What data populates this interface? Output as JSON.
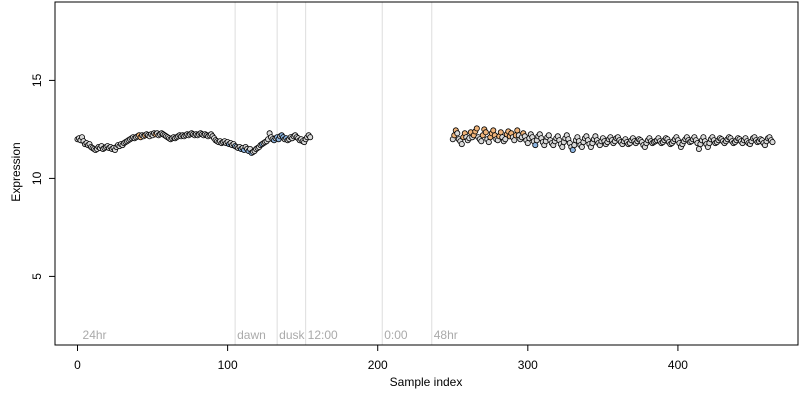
{
  "chart_data": {
    "type": "scatter",
    "xlabel": "Sample index",
    "ylabel": "Expression",
    "xlim": [
      -15,
      480
    ],
    "ylim": [
      1.5,
      19.0
    ],
    "x_ticks": [
      0,
      100,
      200,
      300,
      400
    ],
    "y_ticks": [
      5,
      10,
      15
    ],
    "grid": false,
    "marker": "circle",
    "phase_lines": [
      {
        "x": 105,
        "label": "dawn"
      },
      {
        "x": 133,
        "label": "dusk"
      },
      {
        "x": 152,
        "label": "12:00"
      },
      {
        "x": 203,
        "label": "0:00"
      },
      {
        "x": 236,
        "label": "48hr"
      }
    ],
    "annotations": [
      {
        "x": 2,
        "label": "24hr"
      }
    ],
    "annotation_y": 2.0,
    "colors": {
      "default": "#d9d9d9",
      "orange": "#f0b47a",
      "blue": "#8cb4e0",
      "outline": "#000000",
      "line": "#dddddd",
      "label": "#aaaaaa"
    },
    "series": [
      {
        "start": 0,
        "y": [
          12.0,
          12.05,
          11.95,
          12.1,
          11.9,
          11.75,
          11.8,
          11.7,
          11.75,
          11.6,
          11.55,
          11.5,
          11.45,
          11.5,
          11.6,
          11.55,
          11.65,
          11.5,
          11.55,
          11.6,
          11.65,
          11.55,
          11.6,
          11.5,
          11.55,
          11.45,
          11.6,
          11.7,
          11.65,
          11.75,
          11.7,
          11.8,
          11.85,
          11.9,
          11.95,
          12.0,
          12.05,
          12.1,
          12.05,
          12.1,
          12.15,
          12.2,
          12.1,
          12.2,
          12.15,
          12.2,
          12.25,
          12.2,
          12.15,
          12.25,
          12.2,
          12.3,
          12.25,
          12.3,
          12.2,
          12.25,
          12.3,
          12.25,
          12.2,
          12.15,
          12.1,
          12.05,
          12.0,
          12.05,
          12.1,
          12.05,
          12.1,
          12.15,
          12.2,
          12.15,
          12.2,
          12.15,
          12.2,
          12.25,
          12.2,
          12.25,
          12.3,
          12.25,
          12.2,
          12.25,
          12.2,
          12.25,
          12.3,
          12.25,
          12.2,
          12.25,
          12.2,
          12.15,
          12.2,
          12.25,
          12.15,
          12.05,
          11.95,
          11.9,
          11.85,
          11.9,
          11.8,
          11.85,
          11.9,
          11.8,
          11.85,
          11.75,
          11.8,
          11.7,
          11.75,
          11.65,
          11.6,
          11.55,
          11.6,
          11.5,
          11.55,
          11.45,
          11.6,
          11.5,
          11.4,
          11.5,
          11.3,
          11.35,
          11.4,
          11.5,
          11.55,
          11.6,
          11.7,
          11.75,
          11.8,
          11.85,
          11.9,
          12.0,
          12.3,
          12.1,
          12.0,
          11.95,
          12.05,
          12.1,
          12.0,
          12.15,
          12.2,
          12.1,
          12.0,
          12.05,
          11.95,
          12.0,
          12.1,
          12.05,
          12.15,
          12.2,
          12.1,
          12.05,
          11.95,
          12.0,
          11.9,
          11.85,
          12.0,
          12.1,
          12.2,
          12.1
        ],
        "colors": [
          "d",
          "d",
          "d",
          "d",
          "d",
          "d",
          "d",
          "d",
          "d",
          "d",
          "d",
          "d",
          "d",
          "d",
          "d",
          "d",
          "d",
          "d",
          "d",
          "d",
          "d",
          "d",
          "d",
          "d",
          "d",
          "d",
          "d",
          "d",
          "d",
          "d",
          "d",
          "d",
          "d",
          "d",
          "d",
          "d",
          "d",
          "d",
          "d",
          "d",
          "d",
          "o",
          "o",
          "d",
          "d",
          "o",
          "d",
          "d",
          "d",
          "d",
          "d",
          "d",
          "o",
          "d",
          "d",
          "d",
          "d",
          "d",
          "d",
          "d",
          "d",
          "d",
          "d",
          "d",
          "d",
          "d",
          "d",
          "d",
          "d",
          "d",
          "d",
          "d",
          "d",
          "d",
          "d",
          "d",
          "d",
          "d",
          "d",
          "d",
          "d",
          "d",
          "d",
          "d",
          "d",
          "d",
          "d",
          "d",
          "d",
          "d",
          "d",
          "d",
          "d",
          "d",
          "d",
          "d",
          "d",
          "d",
          "d",
          "d",
          "d",
          "b",
          "d",
          "d",
          "d",
          "b",
          "d",
          "d",
          "d",
          "b",
          "d",
          "b",
          "d",
          "d",
          "b",
          "d",
          "b",
          "d",
          "d",
          "d",
          "d",
          "d",
          "d",
          "b",
          "d",
          "d",
          "d",
          "d",
          "d",
          "d",
          "d",
          "b",
          "d",
          "b",
          "b",
          "d",
          "b",
          "b",
          "d",
          "b",
          "d",
          "d",
          "d",
          "d",
          "d",
          "d",
          "d",
          "d",
          "d",
          "d",
          "d",
          "d",
          "d",
          "d",
          "d",
          "d"
        ]
      },
      {
        "start": 250,
        "y": [
          12.0,
          12.2,
          12.45,
          12.3,
          12.0,
          11.9,
          11.75,
          12.1,
          12.3,
          12.1,
          11.95,
          12.05,
          12.35,
          12.1,
          12.2,
          12.4,
          12.55,
          12.1,
          12.0,
          11.9,
          12.2,
          12.5,
          12.35,
          12.0,
          11.85,
          12.1,
          12.3,
          12.45,
          12.2,
          12.0,
          11.95,
          12.15,
          12.35,
          12.1,
          11.9,
          12.0,
          12.25,
          12.4,
          12.15,
          12.3,
          12.1,
          11.95,
          12.2,
          12.45,
          12.2,
          12.0,
          12.1,
          12.3,
          12.15,
          11.95,
          11.8,
          12.05,
          12.25,
          12.1,
          11.9,
          11.7,
          11.95,
          12.15,
          12.25,
          12.05,
          11.85,
          11.7,
          11.9,
          12.1,
          12.2,
          11.95,
          11.8,
          11.7,
          11.9,
          12.05,
          12.15,
          11.95,
          11.75,
          11.6,
          11.85,
          12.05,
          12.2,
          12.0,
          11.8,
          11.6,
          11.45,
          11.7,
          11.95,
          12.1,
          11.9,
          11.7,
          11.6,
          11.85,
          12.05,
          12.15,
          11.95,
          11.75,
          11.6,
          11.8,
          12.0,
          12.15,
          11.95,
          11.8,
          11.7,
          11.9,
          12.05,
          11.9,
          11.75,
          11.85,
          12.0,
          12.1,
          11.95,
          11.8,
          11.9,
          12.05,
          12.1,
          11.95,
          11.85,
          11.75,
          11.9,
          12.0,
          11.85,
          11.75,
          11.8,
          11.95,
          12.05,
          11.9,
          11.8,
          11.9,
          12.0,
          11.95,
          11.85,
          11.7,
          11.6,
          11.8,
          11.95,
          12.05,
          11.9,
          11.8,
          11.85,
          11.9,
          11.95,
          12.05,
          11.9,
          11.8,
          11.85,
          11.95,
          12.05,
          12.0,
          11.85,
          11.75,
          11.8,
          11.9,
          12.0,
          12.1,
          11.95,
          11.8,
          11.6,
          11.75,
          11.9,
          12.0,
          12.1,
          11.95,
          11.85,
          11.9,
          12.0,
          12.1,
          11.95,
          11.8,
          11.5,
          11.75,
          11.95,
          12.1,
          11.9,
          11.75,
          11.6,
          11.8,
          12.0,
          12.1,
          11.95,
          11.8,
          11.85,
          11.95,
          12.05,
          12.0,
          11.9,
          11.8,
          11.9,
          12.0,
          12.1,
          12.05,
          11.9,
          11.8,
          11.85,
          11.95,
          12.05,
          12.0,
          11.9,
          11.8,
          11.95,
          12.05,
          11.9,
          11.8,
          11.75,
          11.9,
          12.05,
          12.1,
          11.95,
          11.85,
          11.9,
          12.0,
          11.95,
          11.8,
          11.7,
          11.9,
          12.05,
          12.1,
          11.95,
          11.85
        ],
        "colors": [
          "d",
          "o",
          "o",
          "d",
          "d",
          "d",
          "d",
          "o",
          "o",
          "d",
          "d",
          "d",
          "o",
          "d",
          "o",
          "o",
          "o",
          "d",
          "d",
          "d",
          "o",
          "o",
          "o",
          "d",
          "d",
          "o",
          "o",
          "o",
          "o",
          "d",
          "d",
          "o",
          "o",
          "d",
          "d",
          "d",
          "o",
          "o",
          "o",
          "o",
          "d",
          "d",
          "o",
          "o",
          "d",
          "d",
          "d",
          "o",
          "d",
          "d",
          "d",
          "d",
          "d",
          "d",
          "d",
          "b",
          "d",
          "d",
          "d",
          "d",
          "d",
          "d",
          "d",
          "d",
          "d",
          "d",
          "d",
          "d",
          "d",
          "d",
          "d",
          "d",
          "d",
          "d",
          "d",
          "d",
          "d",
          "d",
          "d",
          "d",
          "b",
          "d",
          "d",
          "d",
          "d",
          "d",
          "d",
          "d",
          "d",
          "d",
          "d",
          "d",
          "d",
          "d",
          "d",
          "d",
          "d",
          "d",
          "d",
          "d",
          "d",
          "d",
          "d",
          "d",
          "d",
          "d",
          "d",
          "d",
          "d",
          "d",
          "d",
          "d",
          "d",
          "d",
          "d",
          "d",
          "d",
          "d",
          "d",
          "d",
          "d",
          "d",
          "d",
          "d",
          "d",
          "d",
          "d",
          "d",
          "d",
          "d",
          "d",
          "d",
          "d",
          "d",
          "d",
          "d",
          "d",
          "d",
          "d",
          "d",
          "d",
          "d",
          "d",
          "d",
          "d",
          "d",
          "d",
          "d",
          "d",
          "d",
          "d",
          "d",
          "d",
          "d",
          "d",
          "d",
          "d",
          "d",
          "d",
          "d",
          "d",
          "d",
          "d",
          "d",
          "d",
          "d",
          "d",
          "d",
          "d",
          "d",
          "d",
          "d",
          "d",
          "d",
          "d",
          "d",
          "d",
          "d",
          "d",
          "d",
          "d",
          "d",
          "d",
          "d",
          "d",
          "d",
          "d",
          "d",
          "d",
          "d",
          "d",
          "d",
          "d",
          "d",
          "d",
          "d",
          "d",
          "d",
          "d",
          "d",
          "d",
          "d",
          "d",
          "d",
          "d",
          "d",
          "d",
          "d"
        ]
      }
    ]
  }
}
